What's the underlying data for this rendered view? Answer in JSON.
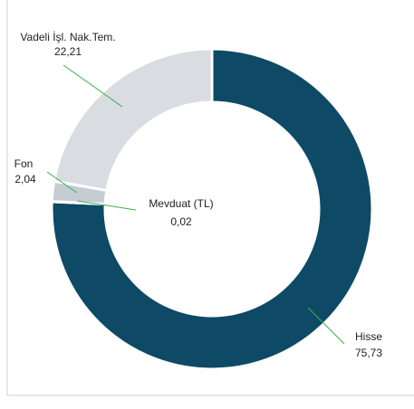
{
  "chart_data": {
    "type": "pie",
    "donut": true,
    "categories": [
      "Hisse",
      "Mevduat (TL)",
      "Fon",
      "Vadeli İşl. Nak.Tem."
    ],
    "values": [
      75.73,
      0.02,
      2.04,
      22.21
    ],
    "value_labels": [
      "75,73",
      "0,02",
      "2,04",
      "22,21"
    ],
    "colors": [
      "#0e4a66",
      "#cfd4da",
      "#c5ccd3",
      "#d9dde2"
    ]
  }
}
